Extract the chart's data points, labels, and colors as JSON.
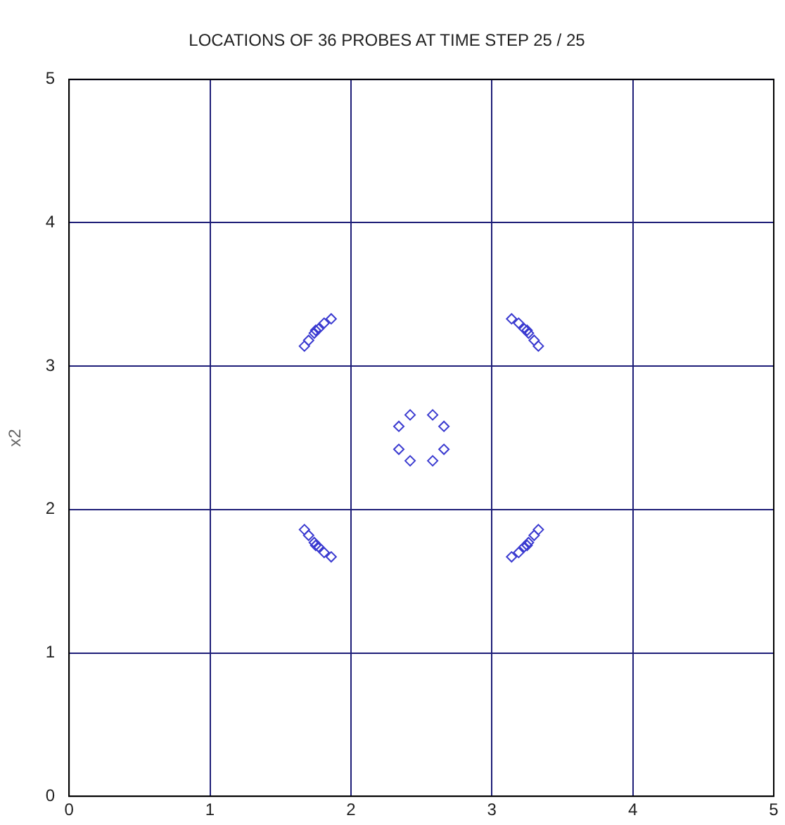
{
  "chart_data": {
    "type": "scatter",
    "title": "LOCATIONS OF 36 PROBES AT TIME STEP 25 / 25",
    "ylabel": "x2",
    "xlim": [
      0,
      5
    ],
    "ylim": [
      0,
      5
    ],
    "xticks": [
      0,
      1,
      2,
      3,
      4,
      5
    ],
    "yticks": [
      0,
      1,
      2,
      3,
      4,
      5
    ],
    "grid": true,
    "marker": "diamond",
    "legend": false,
    "series": [
      {
        "color": "#3a3ad0",
        "x": [
          1.67,
          1.7,
          1.74,
          1.75,
          1.77,
          1.81,
          1.86,
          3.33,
          3.3,
          3.26,
          3.25,
          3.23,
          3.19,
          3.14,
          1.67,
          1.7,
          1.74,
          1.75,
          1.77,
          1.81,
          1.86,
          3.33,
          3.3,
          3.26,
          3.25,
          3.23,
          3.19,
          3.14,
          2.42,
          2.58,
          2.34,
          2.66,
          2.34,
          2.66,
          2.42,
          2.58
        ],
        "values": [
          3.14,
          3.18,
          3.23,
          3.25,
          3.26,
          3.3,
          3.33,
          3.14,
          3.18,
          3.23,
          3.25,
          3.26,
          3.3,
          3.33,
          1.86,
          1.82,
          1.77,
          1.75,
          1.74,
          1.7,
          1.67,
          1.86,
          1.82,
          1.77,
          1.75,
          1.74,
          1.7,
          1.67,
          2.66,
          2.66,
          2.58,
          2.58,
          2.42,
          2.42,
          2.34,
          2.34
        ]
      }
    ]
  }
}
